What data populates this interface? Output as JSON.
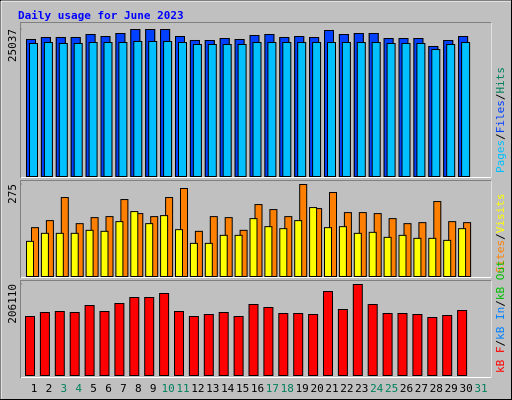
{
  "chart_data": {
    "type": "bar",
    "title": "Daily usage for June 2023",
    "title_color": "#0000ff",
    "categories": [
      "1",
      "2",
      "3",
      "4",
      "5",
      "6",
      "7",
      "8",
      "9",
      "10",
      "11",
      "12",
      "13",
      "14",
      "15",
      "16",
      "17",
      "18",
      "19",
      "20",
      "21",
      "22",
      "23",
      "24",
      "25",
      "26",
      "27",
      "28",
      "29",
      "30",
      "31"
    ],
    "category_colors": [
      "#000000",
      "#000000",
      "#00805c",
      "#00805c",
      "#000000",
      "#000000",
      "#000000",
      "#000000",
      "#000000",
      "#00805c",
      "#00805c",
      "#000000",
      "#000000",
      "#000000",
      "#000000",
      "#000000",
      "#00805c",
      "#00805c",
      "#000000",
      "#000000",
      "#000000",
      "#000000",
      "#000000",
      "#00805c",
      "#00805c",
      "#000000",
      "#000000",
      "#000000",
      "#000000",
      "#000000",
      "#00805c"
    ],
    "legend_separator": "/",
    "panels": [
      {
        "ylim": [
          0,
          25037
        ],
        "yticks": [
          25037
        ],
        "series": [
          {
            "name": "Pages",
            "color": "#00c0ff",
            "values": [
              22653,
              22823,
              22653,
              22653,
              22823,
              22823,
              22823,
              22993,
              22993,
              22993,
              22823,
              22482,
              22482,
              22482,
              22482,
              22823,
              22823,
              22823,
              22823,
              22823,
              22823,
              22823,
              22823,
              22823,
              22653,
              22653,
              22653,
              21630,
              22482,
              22823,
              null
            ]
          },
          {
            "name": "Files",
            "color": "#0040ff",
            "values": [
              23334,
              23675,
              23675,
              23675,
              24186,
              23845,
              24356,
              25037,
              25037,
              25037,
              23845,
              23164,
              23164,
              23504,
              23334,
              24015,
              24186,
              23675,
              23845,
              23675,
              24867,
              24186,
              24356,
              24356,
              23504,
              23504,
              23504,
              22142,
              23164,
              23845,
              null
            ]
          },
          {
            "name": "Hits",
            "color": "#00805c",
            "values": [
              23334,
              23675,
              23675,
              23675,
              24186,
              23845,
              24356,
              25037,
              25037,
              25037,
              23845,
              23164,
              23164,
              23504,
              23334,
              24015,
              24186,
              23675,
              23845,
              23675,
              24867,
              24186,
              24356,
              24356,
              23504,
              23504,
              23504,
              22142,
              23164,
              23845,
              null
            ]
          }
        ]
      },
      {
        "ylim": [
          0,
          275
        ],
        "yticks": [
          275
        ],
        "series": [
          {
            "name": "Sites",
            "color": "#ff8000",
            "values": [
              146,
              167,
              236,
              158,
              176,
              179,
              230,
              188,
              179,
              236,
              263,
              135,
              179,
              176,
              138,
              215,
              200,
              179,
              275,
              203,
              251,
              191,
              191,
              188,
              173,
              158,
              161,
              224,
              164,
              161,
              null
            ]
          },
          {
            "name": "Visits",
            "color": "#ffff00",
            "values": [
              105,
              129,
              129,
              129,
              138,
              135,
              164,
              194,
              158,
              182,
              140,
              99,
              99,
              123,
              123,
              173,
              149,
              143,
              167,
              206,
              146,
              149,
              129,
              132,
              117,
              123,
              114,
              114,
              108,
              143,
              null
            ]
          }
        ]
      },
      {
        "ylim": [
          0,
          206110
        ],
        "yticks": [
          206110
        ],
        "series": [
          {
            "name": "kB F",
            "color": "#ff0000",
            "values": [
              133632,
              142691,
              144957,
              142691,
              158546,
              144957,
              163076,
              176666,
              176666,
              185725,
              144957,
              133632,
              138162,
              142691,
              133632,
              160811,
              154016,
              140427,
              140427,
              138162,
              190255,
              149486,
              206110,
              160811,
              140427,
              140427,
              138162,
              131367,
              135897,
              147222,
              null
            ]
          },
          {
            "name": "kB In",
            "color": "#0080ff",
            "values": [
              0,
              0,
              0,
              0,
              0,
              0,
              0,
              0,
              0,
              0,
              0,
              0,
              0,
              0,
              0,
              0,
              0,
              0,
              0,
              0,
              0,
              0,
              0,
              0,
              0,
              0,
              0,
              0,
              0,
              0,
              null
            ]
          },
          {
            "name": "kB Out",
            "color": "#00c000",
            "values": [
              0,
              0,
              0,
              0,
              0,
              0,
              0,
              0,
              0,
              0,
              0,
              0,
              0,
              0,
              0,
              0,
              0,
              0,
              0,
              0,
              0,
              0,
              0,
              0,
              0,
              0,
              0,
              0,
              0,
              0,
              null
            ]
          }
        ]
      }
    ]
  }
}
